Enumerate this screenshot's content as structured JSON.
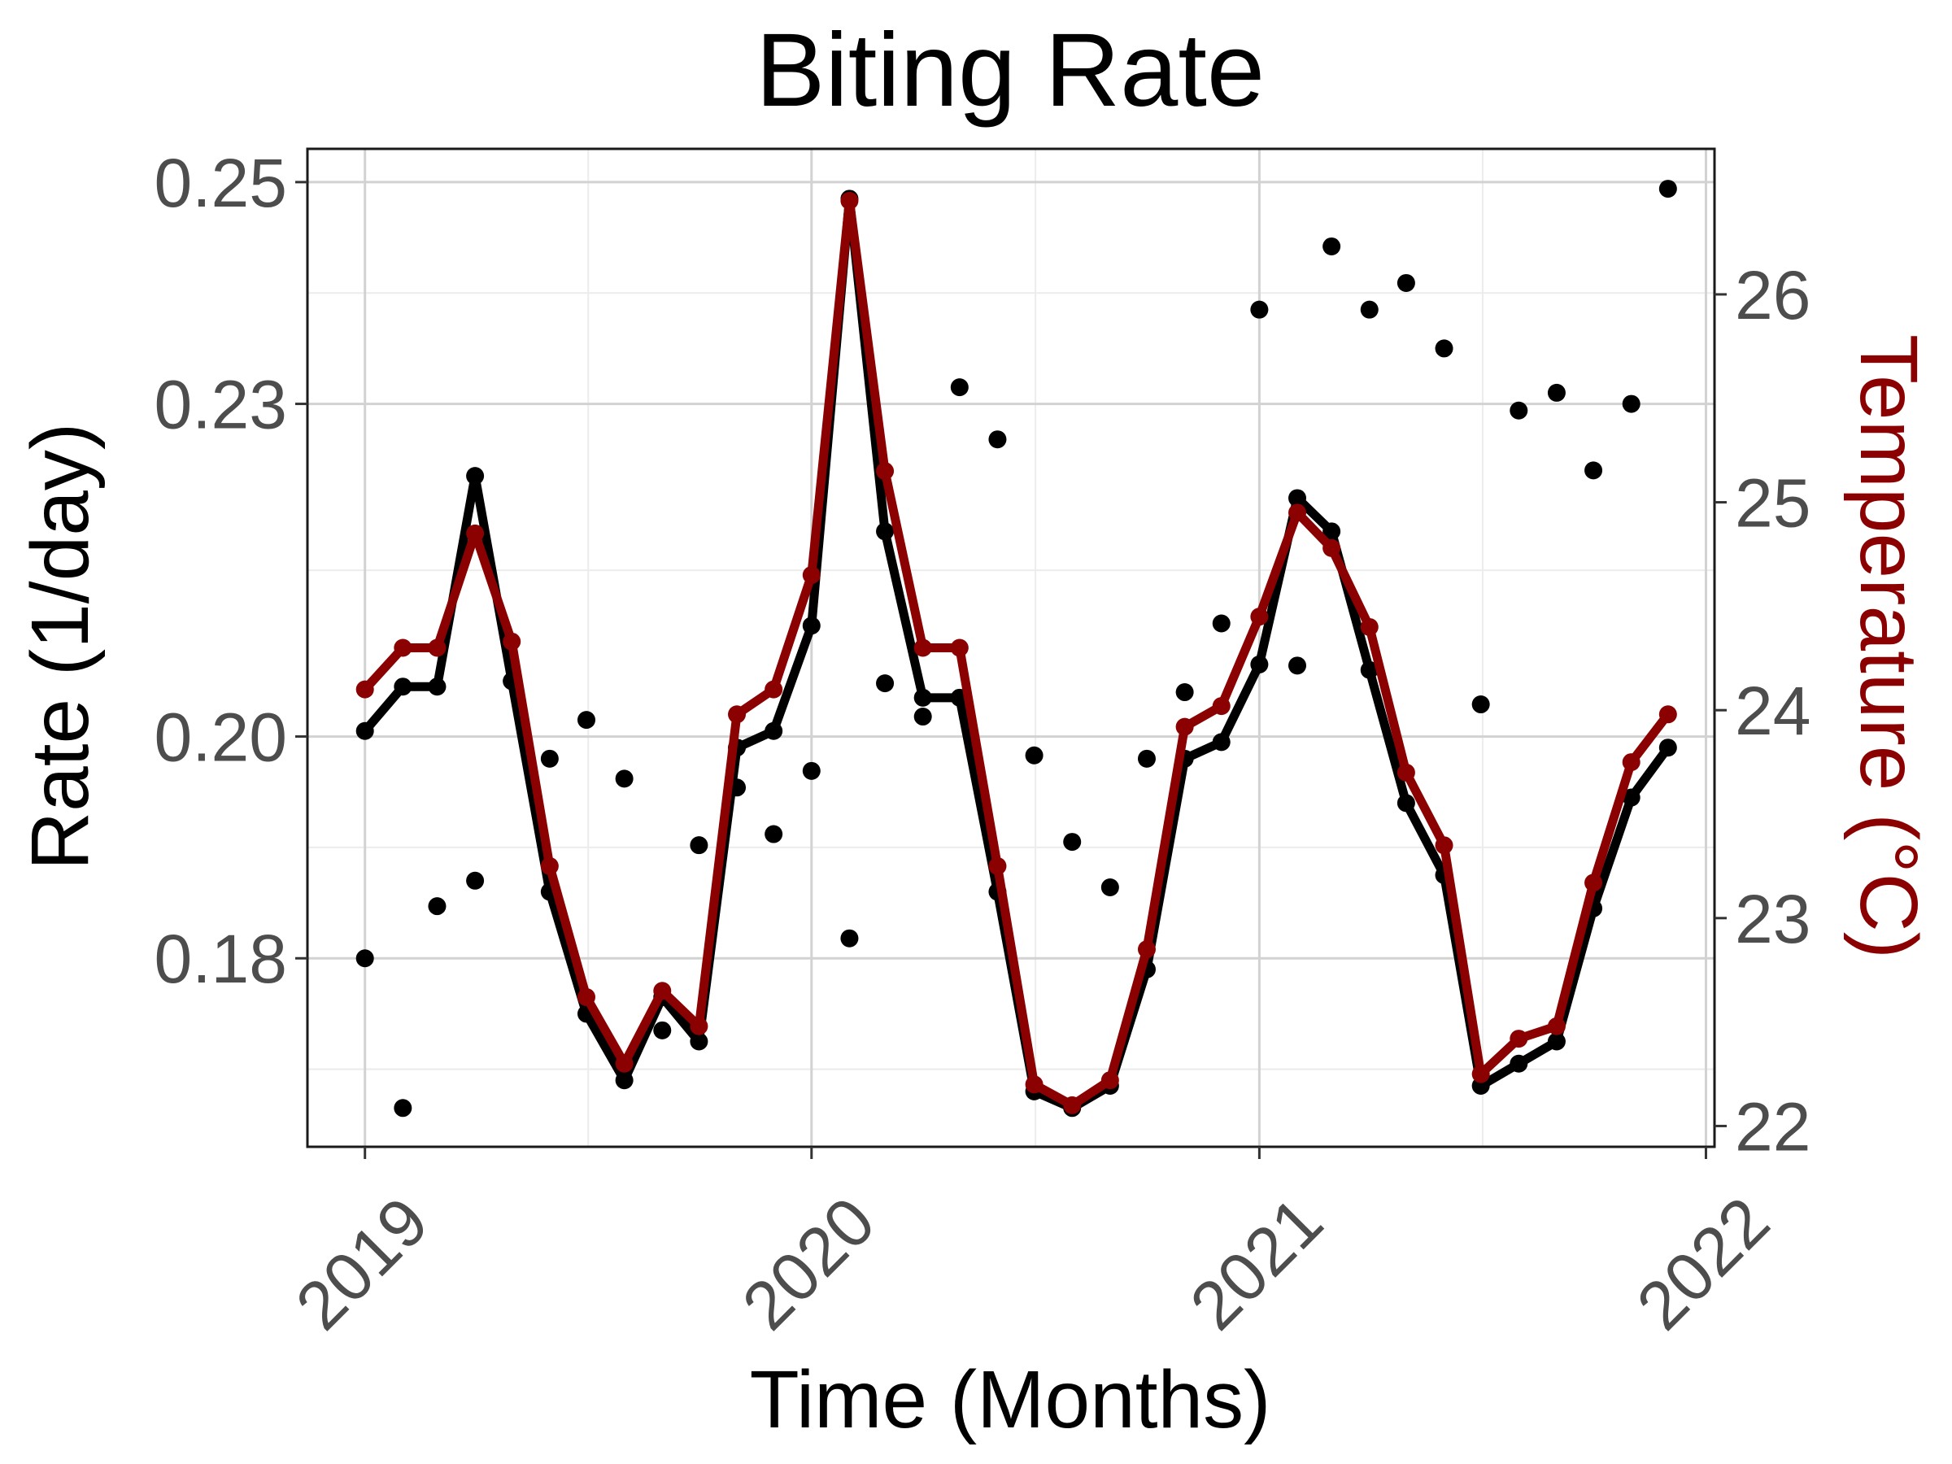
{
  "chart_data": {
    "type": "line",
    "title": "Biting Rate",
    "xlabel": "Time (Months)",
    "ylabel": "Rate (1/day)",
    "y2label": "Temperature (°C)",
    "xlim": [
      "2018-11-15",
      "2022-01-08"
    ],
    "ylim": [
      0.163,
      0.253
    ],
    "y2lim": [
      21.9,
      26.7
    ],
    "x_ticks": [
      "2019-01-01",
      "2020-01-01",
      "2021-01-01",
      "2022-01-01"
    ],
    "x_tick_labels": [
      "2019",
      "2020",
      "2021",
      "2022"
    ],
    "y_ticks": [
      0.18,
      0.2,
      0.23,
      0.25
    ],
    "y_tick_labels": [
      "0.18",
      "0.20",
      "0.23",
      "0.25"
    ],
    "y2_ticks": [
      22,
      23,
      24,
      25,
      26
    ],
    "y2_tick_labels": [
      "22",
      "23",
      "24",
      "25",
      "26"
    ],
    "grid": true,
    "colors": {
      "rate": "#000000",
      "temperature": "#8b0000"
    },
    "x": [
      "2019-01-01",
      "2019-02-01",
      "2019-03-01",
      "2019-04-01",
      "2019-05-01",
      "2019-06-01",
      "2019-07-01",
      "2019-08-01",
      "2019-09-01",
      "2019-10-01",
      "2019-11-01",
      "2019-12-01",
      "2020-01-01",
      "2020-02-01",
      "2020-03-01",
      "2020-04-01",
      "2020-05-01",
      "2020-06-01",
      "2020-07-01",
      "2020-08-01",
      "2020-09-01",
      "2020-10-01",
      "2020-11-01",
      "2020-12-01",
      "2021-01-01",
      "2021-02-01",
      "2021-03-01",
      "2021-04-01",
      "2021-05-01",
      "2021-06-01",
      "2021-07-01",
      "2021-08-01",
      "2021-09-01",
      "2021-10-01",
      "2021-11-01",
      "2021-12-01"
    ],
    "series": [
      {
        "role": "rate_line",
        "values": [
          0.2005,
          0.2045,
          0.2045,
          0.2235,
          0.205,
          0.186,
          0.175,
          0.169,
          0.1765,
          0.1725,
          0.199,
          0.2005,
          0.21,
          0.2485,
          0.2185,
          0.2035,
          0.2035,
          0.186,
          0.168,
          0.1665,
          0.1685,
          0.179,
          0.198,
          0.1995,
          0.2065,
          0.2215,
          0.2185,
          0.206,
          0.194,
          0.1875,
          0.1685,
          0.1705,
          0.1725,
          0.1845,
          0.1945,
          0.199
        ]
      },
      {
        "role": "rate_points",
        "values": [
          0.18,
          0.1665,
          0.1847,
          0.187,
          0.205,
          0.198,
          0.2015,
          0.1962,
          0.1735,
          0.1902,
          0.1954,
          0.1912,
          0.1969,
          0.1818,
          0.2048,
          0.2018,
          0.2315,
          0.2268,
          0.1983,
          0.1905,
          0.1864,
          0.198,
          0.204,
          0.2102,
          0.2385,
          0.2064,
          0.2442,
          0.2385,
          0.2409,
          0.235,
          0.2029,
          0.2294,
          0.231,
          0.224,
          0.23,
          0.2494
        ]
      },
      {
        "role": "temperature",
        "values": [
          24.1,
          24.3,
          24.3,
          24.85,
          24.33,
          23.25,
          22.62,
          22.3,
          22.65,
          22.48,
          23.98,
          24.1,
          24.65,
          26.45,
          25.15,
          24.3,
          24.3,
          23.25,
          22.2,
          22.1,
          22.22,
          22.85,
          23.92,
          24.02,
          24.45,
          24.95,
          24.78,
          24.4,
          23.7,
          23.35,
          22.25,
          22.42,
          22.48,
          23.17,
          23.75,
          23.98
        ]
      }
    ]
  }
}
